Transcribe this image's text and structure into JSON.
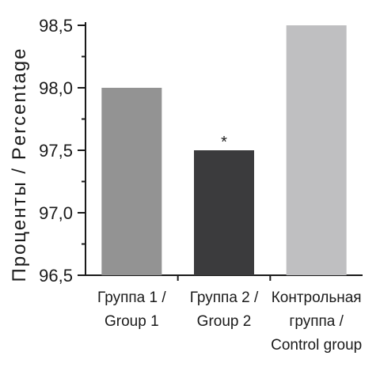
{
  "chart_data": {
    "type": "bar",
    "ylabel": "Проценты / Percentage",
    "xlabel": "",
    "ylim": [
      96.5,
      98.5
    ],
    "yticks": [
      "96,5",
      "97,0",
      "97,5",
      "98,0",
      "98,5"
    ],
    "ytick_values": [
      96.5,
      97.0,
      97.5,
      98.0,
      98.5
    ],
    "categories": [
      [
        "Группа 1 /",
        "Group 1"
      ],
      [
        "Группа 2 /",
        "Group 2"
      ],
      [
        "Контрольная",
        "группа /",
        "Control group"
      ]
    ],
    "values": [
      98.0,
      97.5,
      98.5
    ],
    "colors": [
      "#939393",
      "#3b3b3d",
      "#bfbfc1"
    ],
    "annotations": [
      {
        "category_index": 1,
        "text": "*"
      }
    ],
    "grid": false,
    "legend": "none"
  }
}
